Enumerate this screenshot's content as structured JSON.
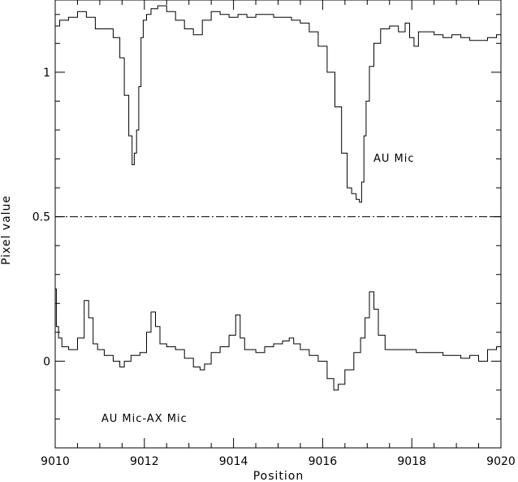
{
  "chart_data": {
    "type": "line",
    "title": "",
    "xlabel": "Position",
    "ylabel": "Pixel value",
    "xlim": [
      9010,
      9020
    ],
    "ylim": [
      -0.3,
      1.25
    ],
    "x_ticks": [
      "9010",
      "9012",
      "9014",
      "9016",
      "9018",
      "9020"
    ],
    "y_ticks": [
      "0",
      "0.5",
      "1"
    ],
    "grid": false,
    "annotations": [
      {
        "text": "AU Mic",
        "x": 9017.6,
        "y": 0.69
      },
      {
        "text": "AU Mic-AX Mic",
        "x": 9012.0,
        "y": -0.21
      }
    ],
    "reference_line": {
      "y": 0.5,
      "style": "dash-dot"
    },
    "series": [
      {
        "name": "AU Mic",
        "x": [
          9010.0,
          9010.2,
          9010.4,
          9010.6,
          9010.8,
          9011.0,
          9011.2,
          9011.4,
          9011.5,
          9011.6,
          9011.7,
          9011.75,
          9011.8,
          9011.85,
          9011.9,
          9011.95,
          9012.0,
          9012.1,
          9012.2,
          9012.4,
          9012.6,
          9012.8,
          9013.0,
          9013.2,
          9013.4,
          9013.6,
          9013.8,
          9014.0,
          9014.2,
          9014.4,
          9014.6,
          9014.8,
          9015.0,
          9015.2,
          9015.4,
          9015.6,
          9015.8,
          9016.0,
          9016.2,
          9016.35,
          9016.5,
          9016.6,
          9016.7,
          9016.8,
          9016.85,
          9016.9,
          9016.95,
          9017.0,
          9017.1,
          9017.2,
          9017.4,
          9017.6,
          9017.8,
          9017.9,
          9018.0,
          9018.1,
          9018.2,
          9018.4,
          9018.6,
          9018.8,
          9019.0,
          9019.2,
          9019.4,
          9019.6,
          9019.8,
          9020.0
        ],
        "y": [
          1.16,
          1.18,
          1.19,
          1.21,
          1.19,
          1.15,
          1.15,
          1.12,
          1.05,
          0.92,
          0.78,
          0.68,
          0.72,
          0.8,
          0.95,
          1.12,
          1.18,
          1.2,
          1.22,
          1.23,
          1.21,
          1.18,
          1.15,
          1.13,
          1.18,
          1.21,
          1.2,
          1.19,
          1.2,
          1.19,
          1.2,
          1.2,
          1.19,
          1.19,
          1.18,
          1.17,
          1.14,
          1.09,
          1.0,
          0.88,
          0.72,
          0.6,
          0.58,
          0.56,
          0.55,
          0.62,
          0.78,
          0.9,
          1.02,
          1.1,
          1.15,
          1.16,
          1.14,
          1.17,
          1.12,
          1.09,
          1.14,
          1.14,
          1.13,
          1.12,
          1.13,
          1.12,
          1.11,
          1.11,
          1.12,
          1.13
        ]
      },
      {
        "name": "AU Mic-AX Mic",
        "x": [
          9010.0,
          9010.05,
          9010.1,
          9010.2,
          9010.4,
          9010.6,
          9010.7,
          9010.8,
          9010.9,
          9011.0,
          9011.2,
          9011.4,
          9011.5,
          9011.6,
          9011.8,
          9012.0,
          9012.1,
          9012.2,
          9012.3,
          9012.4,
          9012.6,
          9012.8,
          9013.0,
          9013.2,
          9013.3,
          9013.4,
          9013.6,
          9013.8,
          9014.0,
          9014.1,
          9014.2,
          9014.3,
          9014.4,
          9014.6,
          9014.8,
          9015.0,
          9015.2,
          9015.3,
          9015.4,
          9015.6,
          9015.8,
          9016.0,
          9016.2,
          9016.3,
          9016.4,
          9016.6,
          9016.8,
          9016.9,
          9017.0,
          9017.1,
          9017.2,
          9017.3,
          9017.5,
          9017.7,
          9018.0,
          9018.2,
          9018.4,
          9018.6,
          9018.8,
          9019.0,
          9019.2,
          9019.4,
          9019.6,
          9019.8,
          9020.0
        ],
        "y": [
          0.25,
          0.12,
          0.08,
          0.05,
          0.04,
          0.08,
          0.21,
          0.15,
          0.06,
          0.04,
          0.02,
          0.0,
          -0.02,
          0.0,
          0.02,
          0.03,
          0.1,
          0.17,
          0.12,
          0.06,
          0.05,
          0.04,
          0.01,
          -0.02,
          -0.03,
          -0.01,
          0.03,
          0.05,
          0.09,
          0.16,
          0.08,
          0.04,
          0.04,
          0.03,
          0.05,
          0.06,
          0.07,
          0.08,
          0.06,
          0.04,
          0.02,
          0.0,
          -0.06,
          -0.1,
          -0.08,
          -0.03,
          0.03,
          0.08,
          0.15,
          0.24,
          0.18,
          0.09,
          0.04,
          0.04,
          0.04,
          0.03,
          0.03,
          0.03,
          0.02,
          0.02,
          0.01,
          0.02,
          0.0,
          0.04,
          0.05
        ]
      }
    ]
  }
}
